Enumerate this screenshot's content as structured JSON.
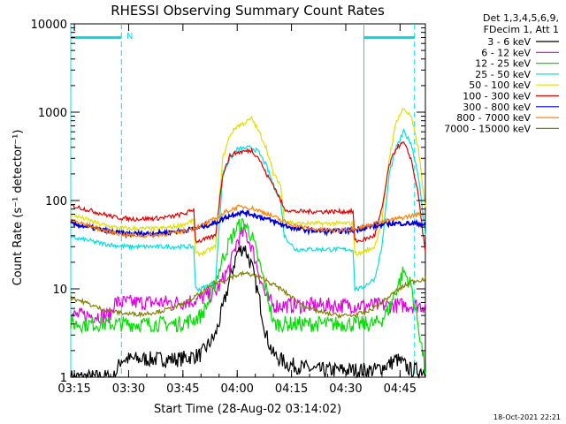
{
  "chart_data": {
    "type": "line",
    "title": "RHESSI Observing Summary Count Rates",
    "xlabel": "Start Time (28-Aug-02 03:14:02)",
    "ylabel": "Count Rate (s⁻¹ detector⁻¹)",
    "x_unit": "minutes",
    "xlim": [
      0,
      98
    ],
    "ylim": [
      1,
      10000
    ],
    "yscale": "log",
    "x_ticks": [
      {
        "value": 1,
        "label": "03:15"
      },
      {
        "value": 16,
        "label": "03:30"
      },
      {
        "value": 31,
        "label": "03:45"
      },
      {
        "value": 46,
        "label": "04:00"
      },
      {
        "value": 61,
        "label": "04:15"
      },
      {
        "value": 76,
        "label": "04:30"
      },
      {
        "value": 91,
        "label": "04:45"
      }
    ],
    "y_ticks": [
      {
        "value": 1,
        "label": "1"
      },
      {
        "value": 10,
        "label": "10"
      },
      {
        "value": 100,
        "label": "100"
      },
      {
        "value": 1000,
        "label": "1000"
      },
      {
        "value": 10000,
        "label": "10000"
      }
    ],
    "legend_header": [
      "Det 1,3,4,5,6,9,",
      "FDecim 1, Att 1"
    ],
    "legend_position": "right",
    "flag_marker": "N",
    "series": [
      {
        "name": "3 - 6 keV",
        "color": "#000000",
        "x": [
          0,
          12,
          14,
          30,
          36,
          40,
          42,
          44,
          46,
          48,
          50,
          52,
          54,
          56,
          60,
          68,
          76,
          80,
          84,
          88,
          90,
          92,
          94,
          96,
          98
        ],
        "y": [
          1,
          1,
          1.6,
          1.6,
          1.8,
          3,
          6,
          13,
          26,
          30,
          18,
          8,
          3,
          1.8,
          1.4,
          1.2,
          1.2,
          1.2,
          1.2,
          1.4,
          1.6,
          1.4,
          1.2,
          1.2,
          1.2
        ]
      },
      {
        "name": "6 - 12 keV",
        "color": "#e000e0",
        "x": [
          0,
          11,
          12,
          30,
          35,
          40,
          44,
          46,
          48,
          50,
          52,
          54,
          56,
          60,
          68,
          76,
          80,
          84,
          88,
          92,
          96,
          98
        ],
        "y": [
          5,
          5,
          7,
          7,
          7.5,
          9,
          18,
          35,
          45,
          30,
          15,
          8,
          6.5,
          6.5,
          6.5,
          6.5,
          6.5,
          6.5,
          6.5,
          6.5,
          6.5,
          6.5
        ]
      },
      {
        "name": "12 - 25 keV",
        "color": "#00e000",
        "x": [
          0,
          10,
          30,
          34,
          36,
          38,
          40,
          42,
          44,
          46,
          48,
          50,
          52,
          54,
          56,
          60,
          76,
          80,
          84,
          86,
          88,
          90,
          92,
          94,
          96,
          98
        ],
        "y": [
          4,
          4,
          4,
          4.5,
          5,
          7,
          12,
          22,
          35,
          50,
          55,
          40,
          20,
          10,
          4,
          4,
          4,
          4,
          4,
          4.5,
          6,
          10,
          16,
          11,
          4,
          1.2
        ]
      },
      {
        "name": "25 - 50 keV",
        "color": "#00e0e0",
        "x": [
          0,
          4,
          8,
          12,
          16,
          20,
          24,
          28,
          32,
          34,
          34.5,
          36,
          40,
          42,
          44,
          46,
          48,
          50,
          52,
          54,
          56,
          58,
          59,
          62,
          66,
          70,
          74,
          78,
          78.5,
          80,
          84,
          86,
          88,
          90,
          92,
          94,
          96,
          98
        ],
        "y": [
          38,
          36,
          33,
          31,
          30,
          30,
          30,
          30,
          30,
          30,
          10,
          10,
          12,
          200,
          300,
          380,
          390,
          400,
          350,
          250,
          150,
          100,
          40,
          28,
          28,
          28,
          28,
          28,
          10,
          10,
          13,
          30,
          200,
          400,
          600,
          450,
          200,
          40
        ]
      },
      {
        "name": "50 - 100 keV",
        "color": "#e0e000",
        "x": [
          0,
          4,
          8,
          12,
          16,
          20,
          24,
          28,
          32,
          34,
          34.5,
          36,
          40,
          42,
          44,
          46,
          48,
          50,
          52,
          54,
          56,
          58,
          59,
          62,
          66,
          70,
          74,
          78,
          78.5,
          80,
          84,
          86,
          88,
          90,
          92,
          94,
          96,
          98
        ],
        "y": [
          70,
          62,
          54,
          50,
          48,
          48,
          48,
          50,
          55,
          60,
          25,
          25,
          30,
          300,
          550,
          700,
          750,
          850,
          600,
          400,
          200,
          150,
          60,
          55,
          55,
          55,
          55,
          55,
          25,
          25,
          30,
          60,
          300,
          800,
          1100,
          900,
          400,
          80
        ]
      },
      {
        "name": "100 - 300 keV",
        "color": "#e00000",
        "x": [
          0,
          4,
          8,
          12,
          16,
          20,
          24,
          28,
          32,
          34,
          34.5,
          36,
          40,
          42,
          44,
          46,
          48,
          50,
          52,
          54,
          56,
          58,
          59,
          62,
          66,
          70,
          74,
          78,
          78.5,
          80,
          84,
          86,
          88,
          90,
          92,
          94,
          96,
          98
        ],
        "y": [
          88,
          80,
          72,
          65,
          62,
          62,
          63,
          66,
          72,
          80,
          35,
          35,
          40,
          200,
          320,
          350,
          360,
          370,
          300,
          200,
          150,
          100,
          80,
          75,
          75,
          75,
          75,
          75,
          35,
          35,
          40,
          80,
          250,
          400,
          450,
          300,
          120,
          25
        ]
      },
      {
        "name": "300 - 800 keV",
        "color": "#0000e0",
        "x": [
          0,
          5,
          10,
          15,
          20,
          25,
          30,
          33,
          36,
          40,
          43,
          46,
          48,
          50,
          54,
          58,
          62,
          66,
          70,
          74,
          78,
          82,
          86,
          88,
          90,
          92,
          94,
          96,
          98
        ],
        "y": [
          55,
          50,
          45,
          42,
          42,
          43,
          45,
          47,
          50,
          56,
          65,
          72,
          73,
          70,
          62,
          54,
          48,
          46,
          45,
          45,
          46,
          50,
          53,
          55,
          55,
          55,
          55,
          55,
          53
        ]
      },
      {
        "name": "800 - 7000 keV",
        "color": "#ff8000",
        "x": [
          0,
          5,
          10,
          15,
          20,
          25,
          30,
          33,
          36,
          40,
          43,
          46,
          48,
          50,
          54,
          58,
          62,
          66,
          70,
          74,
          78,
          82,
          86,
          90,
          94,
          98
        ],
        "y": [
          60,
          52,
          45,
          41,
          40,
          41,
          44,
          47,
          52,
          62,
          75,
          84,
          85,
          82,
          72,
          60,
          52,
          48,
          46,
          46,
          48,
          52,
          57,
          62,
          67,
          72
        ]
      },
      {
        "name": "7000 - 15000 keV",
        "color": "#808000",
        "x": [
          0,
          4,
          8,
          12,
          16,
          20,
          24,
          28,
          32,
          36,
          40,
          44,
          48,
          50,
          54,
          58,
          62,
          66,
          70,
          74,
          78,
          82,
          86,
          90,
          94,
          98
        ],
        "y": [
          8,
          7,
          6,
          5.5,
          5.2,
          5.2,
          5.5,
          6,
          7,
          9,
          11.5,
          13.5,
          15,
          14.5,
          12.5,
          10,
          7.5,
          6,
          5.3,
          5,
          5,
          5.5,
          7,
          9.5,
          12,
          13
        ]
      }
    ],
    "markers": [
      {
        "type": "solid",
        "color": "#00e0e0",
        "x": 0
      },
      {
        "type": "dashed",
        "color": "#00e0e0",
        "x": 14
      },
      {
        "type": "solid",
        "color": "#00e0e0",
        "x": 81
      },
      {
        "type": "dashed",
        "color": "#00e0e0",
        "x": 95
      }
    ],
    "saa_bars": [
      {
        "x": [
          0,
          14
        ],
        "y": 7000,
        "color": "#00e0e0"
      },
      {
        "x": [
          81,
          95
        ],
        "y": 7000,
        "color": "#00e0e0"
      }
    ],
    "footer_timestamp": "18-Oct-2021 22:21"
  }
}
